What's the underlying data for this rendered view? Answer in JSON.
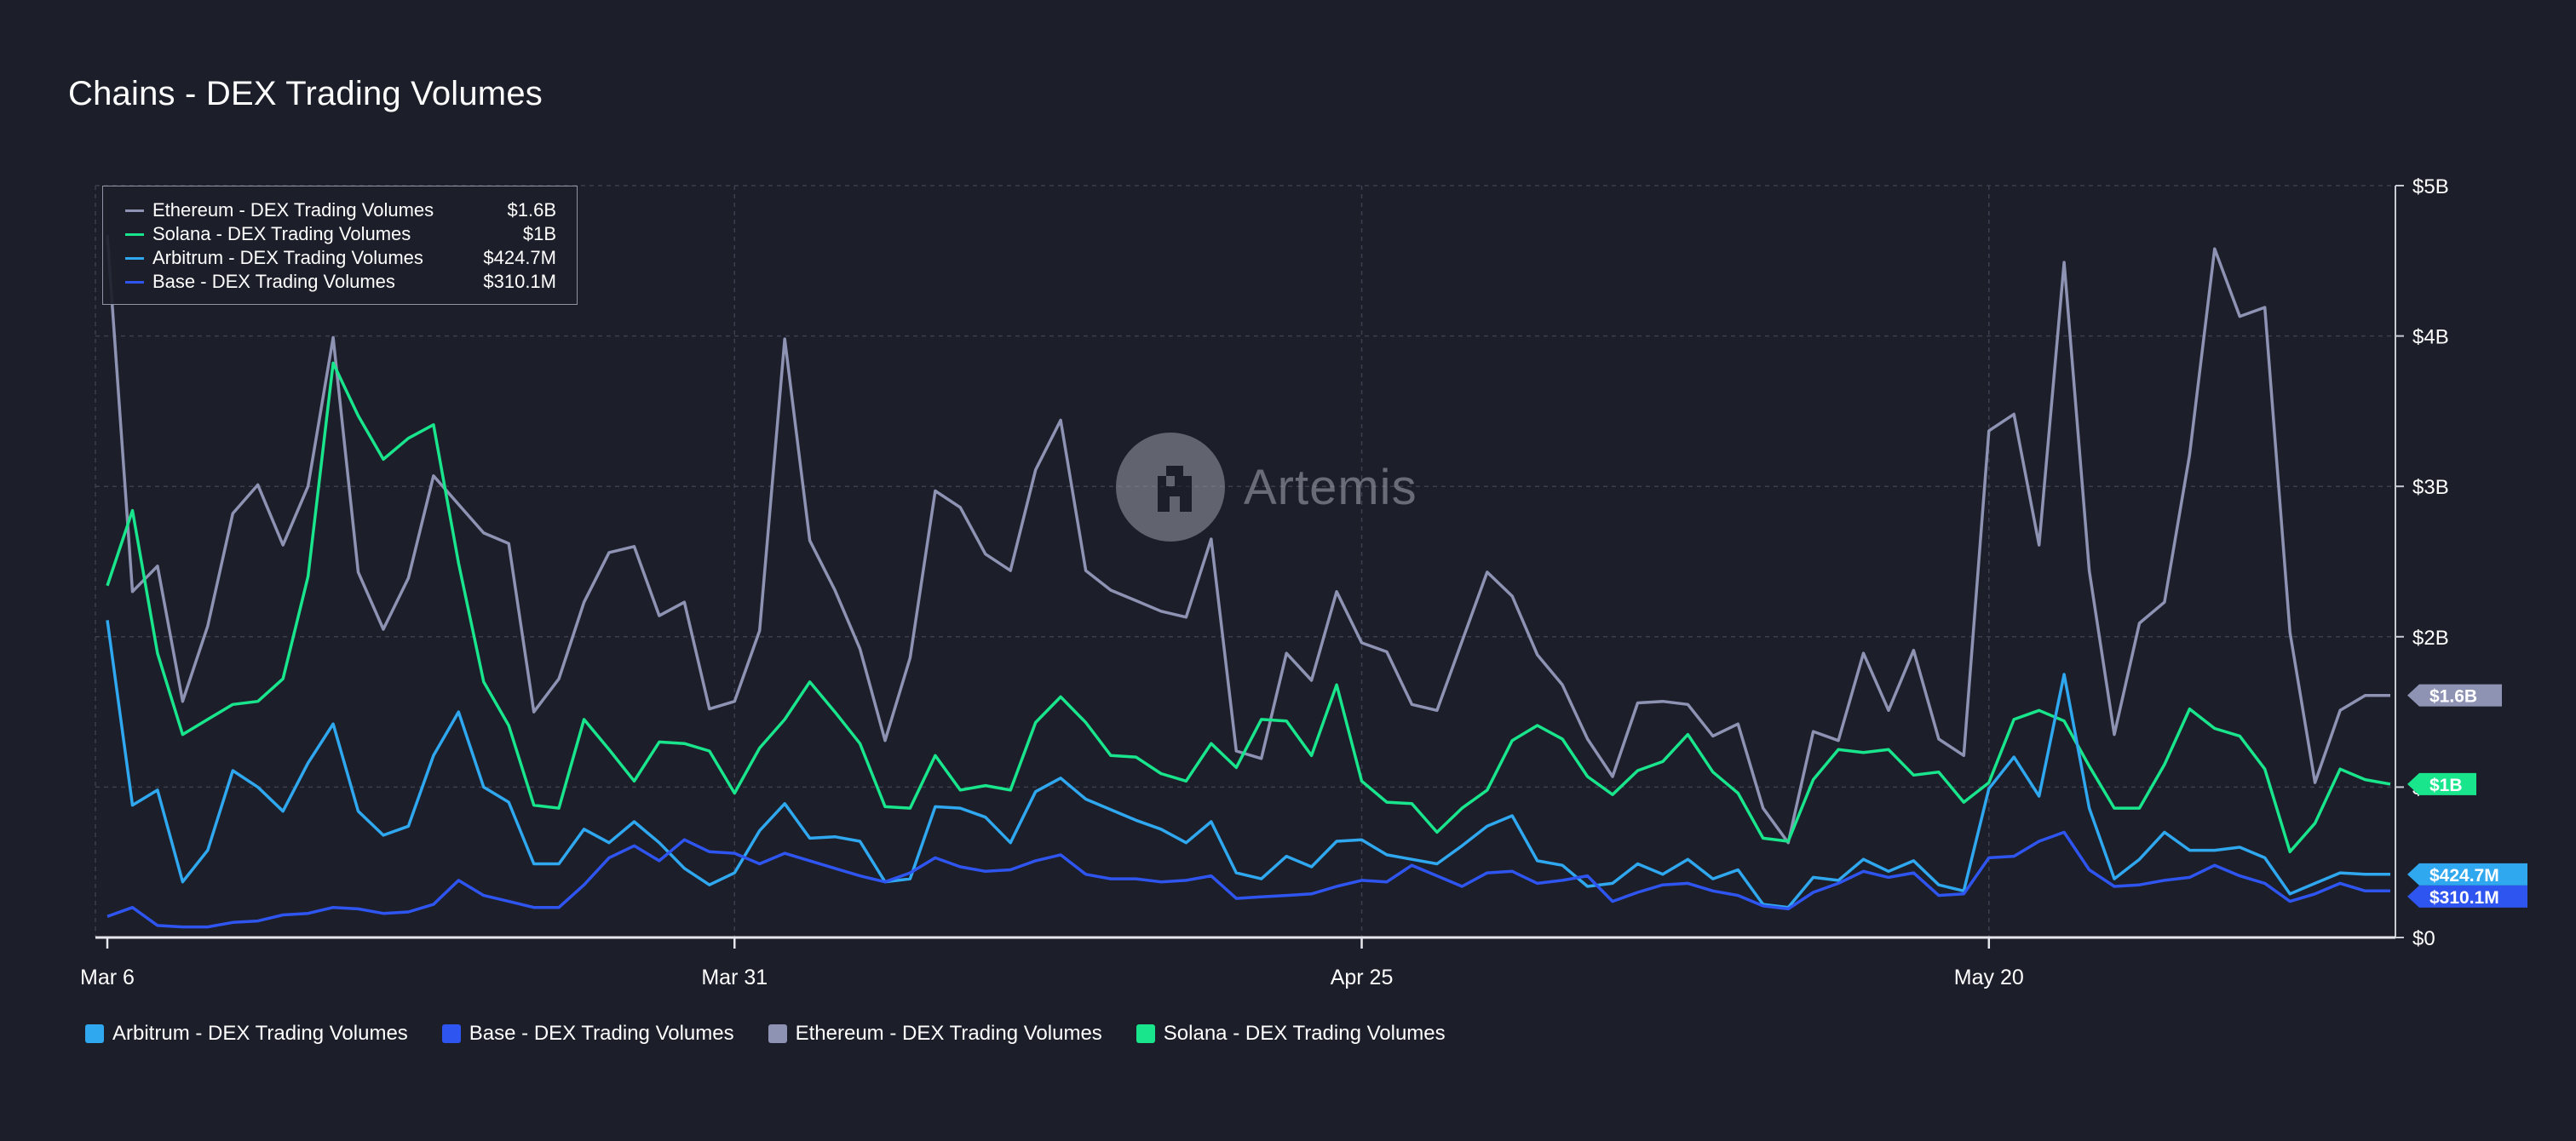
{
  "page": {
    "title": "Chains - DEX Trading Volumes",
    "watermark": "Artemis"
  },
  "tooltip": {
    "rows": [
      {
        "name": "Ethereum - DEX Trading Volumes",
        "value": "$1.6B",
        "color": "#8e93b4"
      },
      {
        "name": "Solana - DEX Trading Volumes",
        "value": "$1B",
        "color": "#19e68c"
      },
      {
        "name": "Arbitrum - DEX Trading Volumes",
        "value": "$424.7M",
        "color": "#2fa8f0"
      },
      {
        "name": "Base - DEX Trading Volumes",
        "value": "$310.1M",
        "color": "#2f55f0"
      }
    ]
  },
  "legend": [
    {
      "name": "Arbitrum - DEX Trading Volumes",
      "color": "#2fa8f0"
    },
    {
      "name": "Base - DEX Trading Volumes",
      "color": "#2f55f0"
    },
    {
      "name": "Ethereum - DEX Trading Volumes",
      "color": "#8e93b4"
    },
    {
      "name": "Solana - DEX Trading Volumes",
      "color": "#19e68c"
    }
  ],
  "chart_data": {
    "type": "line",
    "title": "Chains - DEX Trading Volumes",
    "xlabel": "",
    "ylabel": "",
    "x_start": "2024-03-06",
    "x_ticks": [
      "Mar 6",
      "Mar 31",
      "Apr 25",
      "May 20"
    ],
    "y_ticks": [
      "$0",
      "$1B",
      "$2B",
      "$3B",
      "$4B",
      "$5B"
    ],
    "ylim": [
      0,
      5
    ],
    "y_unit": "B",
    "grid": true,
    "legend_position": "bottom",
    "end_labels": {
      "Ethereum": "$1.6B",
      "Solana": "$1B",
      "Arbitrum": "$424.7M",
      "Base": "$310.1M"
    },
    "series": [
      {
        "name": "Ethereum - DEX Trading Volumes",
        "color": "#8e93b4",
        "values": [
          4.67,
          2.3,
          2.47,
          1.57,
          2.07,
          2.82,
          3.01,
          2.61,
          3.0,
          3.99,
          2.43,
          2.05,
          2.39,
          3.07,
          2.88,
          2.69,
          2.62,
          1.5,
          1.72,
          2.23,
          2.56,
          2.6,
          2.14,
          2.23,
          1.52,
          1.57,
          2.04,
          3.98,
          2.64,
          2.31,
          1.92,
          1.31,
          1.86,
          2.97,
          2.86,
          2.55,
          2.44,
          3.11,
          3.44,
          2.44,
          2.31,
          2.24,
          2.17,
          2.13,
          2.65,
          1.24,
          1.19,
          1.89,
          1.71,
          2.3,
          1.96,
          1.9,
          1.55,
          1.51,
          1.97,
          2.43,
          2.27,
          1.88,
          1.68,
          1.32,
          1.07,
          1.56,
          1.57,
          1.55,
          1.34,
          1.42,
          0.86,
          0.63,
          1.37,
          1.31,
          1.89,
          1.51,
          1.91,
          1.32,
          1.21,
          3.37,
          3.48,
          2.61,
          4.49,
          2.44,
          1.35,
          2.09,
          2.23,
          3.21,
          4.58,
          4.13,
          4.19,
          2.03,
          1.03,
          1.51,
          1.61,
          1.61
        ]
      },
      {
        "name": "Solana - DEX Trading Volumes",
        "color": "#19e68c",
        "values": [
          2.34,
          2.84,
          1.89,
          1.35,
          1.45,
          1.55,
          1.57,
          1.72,
          2.4,
          3.82,
          3.47,
          3.18,
          3.32,
          3.41,
          2.49,
          1.7,
          1.41,
          0.88,
          0.86,
          1.45,
          1.25,
          1.04,
          1.3,
          1.29,
          1.24,
          0.96,
          1.26,
          1.45,
          1.7,
          1.5,
          1.29,
          0.87,
          0.86,
          1.21,
          0.98,
          1.01,
          0.98,
          1.43,
          1.6,
          1.43,
          1.21,
          1.2,
          1.09,
          1.04,
          1.29,
          1.13,
          1.45,
          1.44,
          1.21,
          1.68,
          1.04,
          0.9,
          0.89,
          0.7,
          0.86,
          0.98,
          1.31,
          1.41,
          1.32,
          1.07,
          0.95,
          1.11,
          1.17,
          1.35,
          1.1,
          0.96,
          0.66,
          0.64,
          1.05,
          1.25,
          1.23,
          1.25,
          1.08,
          1.1,
          0.9,
          1.03,
          1.45,
          1.51,
          1.44,
          1.14,
          0.86,
          0.86,
          1.15,
          1.52,
          1.39,
          1.34,
          1.12,
          0.57,
          0.76,
          1.12,
          1.05,
          1.02
        ]
      },
      {
        "name": "Arbitrum - DEX Trading Volumes",
        "color": "#2fa8f0",
        "values": [
          2.11,
          0.88,
          0.98,
          0.37,
          0.58,
          1.11,
          1.0,
          0.84,
          1.16,
          1.42,
          0.84,
          0.68,
          0.74,
          1.21,
          1.5,
          1.0,
          0.9,
          0.49,
          0.49,
          0.72,
          0.63,
          0.77,
          0.63,
          0.46,
          0.35,
          0.43,
          0.71,
          0.89,
          0.66,
          0.67,
          0.64,
          0.37,
          0.39,
          0.87,
          0.86,
          0.8,
          0.63,
          0.97,
          1.06,
          0.92,
          0.85,
          0.78,
          0.72,
          0.63,
          0.77,
          0.43,
          0.39,
          0.54,
          0.47,
          0.64,
          0.65,
          0.55,
          0.52,
          0.49,
          0.61,
          0.74,
          0.81,
          0.51,
          0.48,
          0.34,
          0.36,
          0.49,
          0.42,
          0.52,
          0.39,
          0.45,
          0.22,
          0.2,
          0.4,
          0.38,
          0.52,
          0.44,
          0.51,
          0.35,
          0.31,
          0.99,
          1.2,
          0.94,
          1.75,
          0.86,
          0.39,
          0.52,
          0.7,
          0.58,
          0.58,
          0.6,
          0.53,
          0.29,
          0.36,
          0.43,
          0.42,
          0.42
        ]
      },
      {
        "name": "Base - DEX Trading Volumes",
        "color": "#2f55f0",
        "values": [
          0.14,
          0.2,
          0.08,
          0.07,
          0.07,
          0.1,
          0.11,
          0.15,
          0.16,
          0.2,
          0.19,
          0.16,
          0.17,
          0.22,
          0.38,
          0.28,
          0.24,
          0.2,
          0.2,
          0.35,
          0.53,
          0.61,
          0.51,
          0.65,
          0.57,
          0.56,
          0.49,
          0.56,
          0.51,
          0.46,
          0.41,
          0.37,
          0.43,
          0.53,
          0.47,
          0.44,
          0.45,
          0.51,
          0.55,
          0.42,
          0.39,
          0.39,
          0.37,
          0.38,
          0.41,
          0.26,
          0.27,
          0.28,
          0.29,
          0.34,
          0.38,
          0.37,
          0.48,
          0.41,
          0.34,
          0.43,
          0.44,
          0.36,
          0.38,
          0.41,
          0.24,
          0.3,
          0.35,
          0.36,
          0.31,
          0.28,
          0.21,
          0.19,
          0.3,
          0.36,
          0.44,
          0.4,
          0.43,
          0.28,
          0.29,
          0.53,
          0.54,
          0.64,
          0.7,
          0.45,
          0.34,
          0.35,
          0.38,
          0.4,
          0.48,
          0.41,
          0.36,
          0.24,
          0.29,
          0.36,
          0.31,
          0.31
        ]
      }
    ]
  }
}
